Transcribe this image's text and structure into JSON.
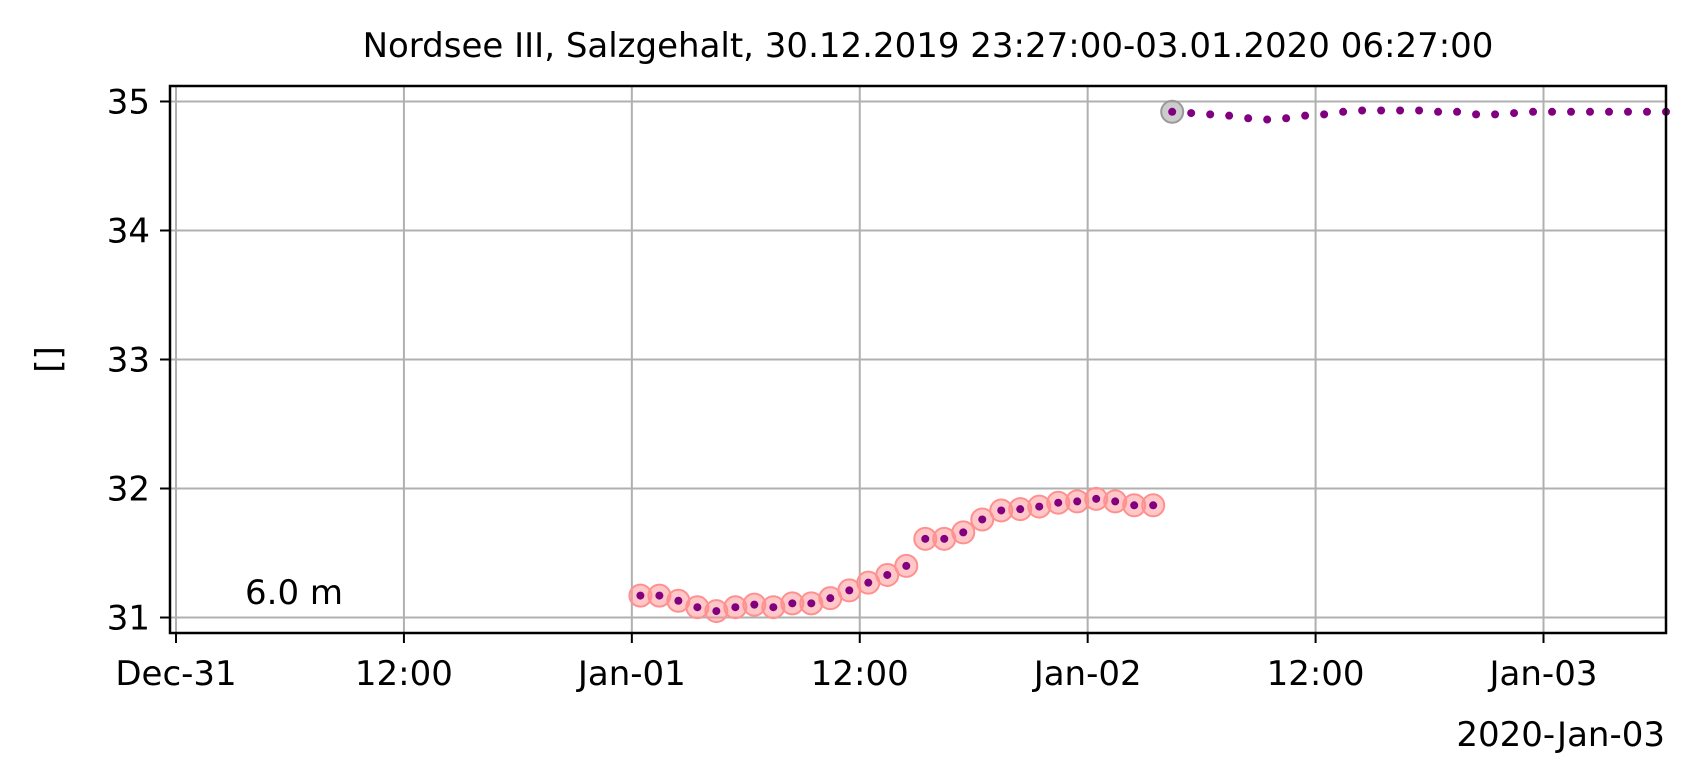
{
  "chart_data": {
    "type": "scatter",
    "title": "Nordsee III, Salzgehalt, 30.12.2019 23:27:00-03.01.2020 06:27:00",
    "xlabel": "",
    "ylabel": "[]",
    "xlim": [
      "2019-12-30T23:41:00",
      "2020-01-03T06:27:00"
    ],
    "ylim": [
      30.88,
      35.12
    ],
    "grid": true,
    "x_ticks": [
      "Dec-31",
      "12:00",
      "Jan-01",
      "12:00",
      "Jan-02",
      "12:00",
      "Jan-03"
    ],
    "x_tick_values": [
      "2019-12-31T00:00",
      "2019-12-31T12:00",
      "2020-01-01T00:00",
      "2020-01-01T12:00",
      "2020-01-02T00:00",
      "2020-01-02T12:00",
      "2020-01-03T00:00"
    ],
    "x_offset_label": "2020-Jan-03",
    "y_ticks": [
      "31",
      "32",
      "33",
      "34",
      "35"
    ],
    "y_tick_values": [
      31,
      32,
      33,
      34,
      35
    ],
    "annotation": "6.0 m",
    "series": [
      {
        "color": "#800080",
        "flag_color": "#ff9090",
        "flagged": true,
        "points": [
          {
            "x": "2020-01-01T00:27:00",
            "y": 31.17
          },
          {
            "x": "2020-01-01T01:27:00",
            "y": 31.17
          },
          {
            "x": "2020-01-01T02:27:00",
            "y": 31.13
          },
          {
            "x": "2020-01-01T03:27:00",
            "y": 31.08
          },
          {
            "x": "2020-01-01T04:27:00",
            "y": 31.05
          },
          {
            "x": "2020-01-01T05:27:00",
            "y": 31.08
          },
          {
            "x": "2020-01-01T06:27:00",
            "y": 31.1
          },
          {
            "x": "2020-01-01T07:27:00",
            "y": 31.08
          },
          {
            "x": "2020-01-01T08:27:00",
            "y": 31.11
          },
          {
            "x": "2020-01-01T09:27:00",
            "y": 31.11
          },
          {
            "x": "2020-01-01T10:27:00",
            "y": 31.15
          },
          {
            "x": "2020-01-01T11:27:00",
            "y": 31.21
          },
          {
            "x": "2020-01-01T12:27:00",
            "y": 31.27
          },
          {
            "x": "2020-01-01T13:27:00",
            "y": 31.33
          },
          {
            "x": "2020-01-01T14:27:00",
            "y": 31.4
          },
          {
            "x": "2020-01-01T15:27:00",
            "y": 31.61
          },
          {
            "x": "2020-01-01T16:27:00",
            "y": 31.61
          },
          {
            "x": "2020-01-01T17:27:00",
            "y": 31.66
          },
          {
            "x": "2020-01-01T18:27:00",
            "y": 31.76
          },
          {
            "x": "2020-01-01T19:27:00",
            "y": 31.83
          },
          {
            "x": "2020-01-01T20:27:00",
            "y": 31.84
          },
          {
            "x": "2020-01-01T21:27:00",
            "y": 31.86
          },
          {
            "x": "2020-01-01T22:27:00",
            "y": 31.89
          },
          {
            "x": "2020-01-01T23:27:00",
            "y": 31.9
          },
          {
            "x": "2020-01-02T00:27:00",
            "y": 31.92
          },
          {
            "x": "2020-01-02T01:27:00",
            "y": 31.9
          },
          {
            "x": "2020-01-02T02:27:00",
            "y": 31.87
          },
          {
            "x": "2020-01-02T03:27:00",
            "y": 31.87
          }
        ]
      },
      {
        "color": "#800080",
        "flag_color": "#999999",
        "flagged": false,
        "points": [
          {
            "x": "2020-01-02T04:27:00",
            "y": 34.92,
            "flag": true
          },
          {
            "x": "2020-01-02T05:27:00",
            "y": 34.91
          },
          {
            "x": "2020-01-02T06:27:00",
            "y": 34.9
          },
          {
            "x": "2020-01-02T07:27:00",
            "y": 34.89
          },
          {
            "x": "2020-01-02T08:27:00",
            "y": 34.87
          },
          {
            "x": "2020-01-02T09:27:00",
            "y": 34.86
          },
          {
            "x": "2020-01-02T10:27:00",
            "y": 34.87
          },
          {
            "x": "2020-01-02T11:27:00",
            "y": 34.89
          },
          {
            "x": "2020-01-02T12:27:00",
            "y": 34.9
          },
          {
            "x": "2020-01-02T13:27:00",
            "y": 34.92
          },
          {
            "x": "2020-01-02T14:27:00",
            "y": 34.93
          },
          {
            "x": "2020-01-02T15:27:00",
            "y": 34.93
          },
          {
            "x": "2020-01-02T16:27:00",
            "y": 34.93
          },
          {
            "x": "2020-01-02T17:27:00",
            "y": 34.93
          },
          {
            "x": "2020-01-02T18:27:00",
            "y": 34.92
          },
          {
            "x": "2020-01-02T19:27:00",
            "y": 34.92
          },
          {
            "x": "2020-01-02T20:27:00",
            "y": 34.9
          },
          {
            "x": "2020-01-02T21:27:00",
            "y": 34.9
          },
          {
            "x": "2020-01-02T22:27:00",
            "y": 34.91
          },
          {
            "x": "2020-01-02T23:27:00",
            "y": 34.92
          },
          {
            "x": "2020-01-03T00:27:00",
            "y": 34.92
          },
          {
            "x": "2020-01-03T01:27:00",
            "y": 34.92
          },
          {
            "x": "2020-01-03T02:27:00",
            "y": 34.92
          },
          {
            "x": "2020-01-03T03:27:00",
            "y": 34.92
          },
          {
            "x": "2020-01-03T04:27:00",
            "y": 34.92
          },
          {
            "x": "2020-01-03T05:27:00",
            "y": 34.92
          },
          {
            "x": "2020-01-03T06:27:00",
            "y": 34.92
          }
        ]
      }
    ]
  }
}
